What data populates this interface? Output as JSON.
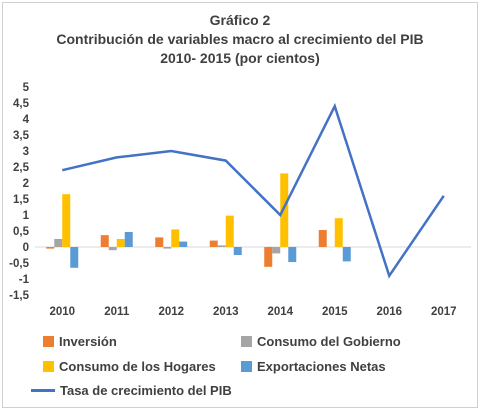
{
  "chart_data": {
    "type": "bar",
    "title_lines": [
      "Gráfico 2",
      "Contribución de variables macro al crecimiento del PIB",
      "2010- 2015 (por cientos)"
    ],
    "categories": [
      "2010",
      "2011",
      "2012",
      "2013",
      "2014",
      "2015",
      "2016",
      "2017"
    ],
    "ylim": [
      -1.5,
      5
    ],
    "yticks": [
      "5",
      "4,5",
      "4",
      "3,5",
      "3",
      "2,5",
      "2",
      "1,5",
      "1",
      "0,5",
      "0",
      "-0,5",
      "-1",
      "-1,5"
    ],
    "ytick_values": [
      5,
      4.5,
      4,
      3.5,
      3,
      2.5,
      2,
      1.5,
      1,
      0.5,
      0,
      -0.5,
      -1,
      -1.5
    ],
    "grid": false,
    "legend_position": "bottom",
    "series": [
      {
        "name": "Inversión",
        "type": "bar",
        "color": "#ED7D31",
        "values": [
          -0.05,
          0.37,
          0.3,
          0.2,
          -0.62,
          0.53,
          null,
          null
        ]
      },
      {
        "name": "Consumo del Gobierno",
        "type": "bar",
        "color": "#A5A5A5",
        "values": [
          0.25,
          -0.1,
          -0.05,
          0.05,
          -0.2,
          null,
          null,
          null
        ]
      },
      {
        "name": "Consumo de los Hogares",
        "type": "bar",
        "color": "#FFC000",
        "values": [
          1.65,
          0.25,
          0.55,
          0.98,
          2.3,
          0.9,
          null,
          null
        ]
      },
      {
        "name": "Exportaciones Netas",
        "type": "bar",
        "color": "#5B9BD5",
        "values": [
          -0.65,
          0.47,
          0.17,
          -0.25,
          -0.47,
          -0.45,
          null,
          null
        ]
      },
      {
        "name": "Tasa de crecimiento del PIB",
        "type": "line",
        "color": "#4472C4",
        "values": [
          2.4,
          2.8,
          3.0,
          2.7,
          1.0,
          4.4,
          -0.9,
          1.6
        ]
      }
    ]
  }
}
